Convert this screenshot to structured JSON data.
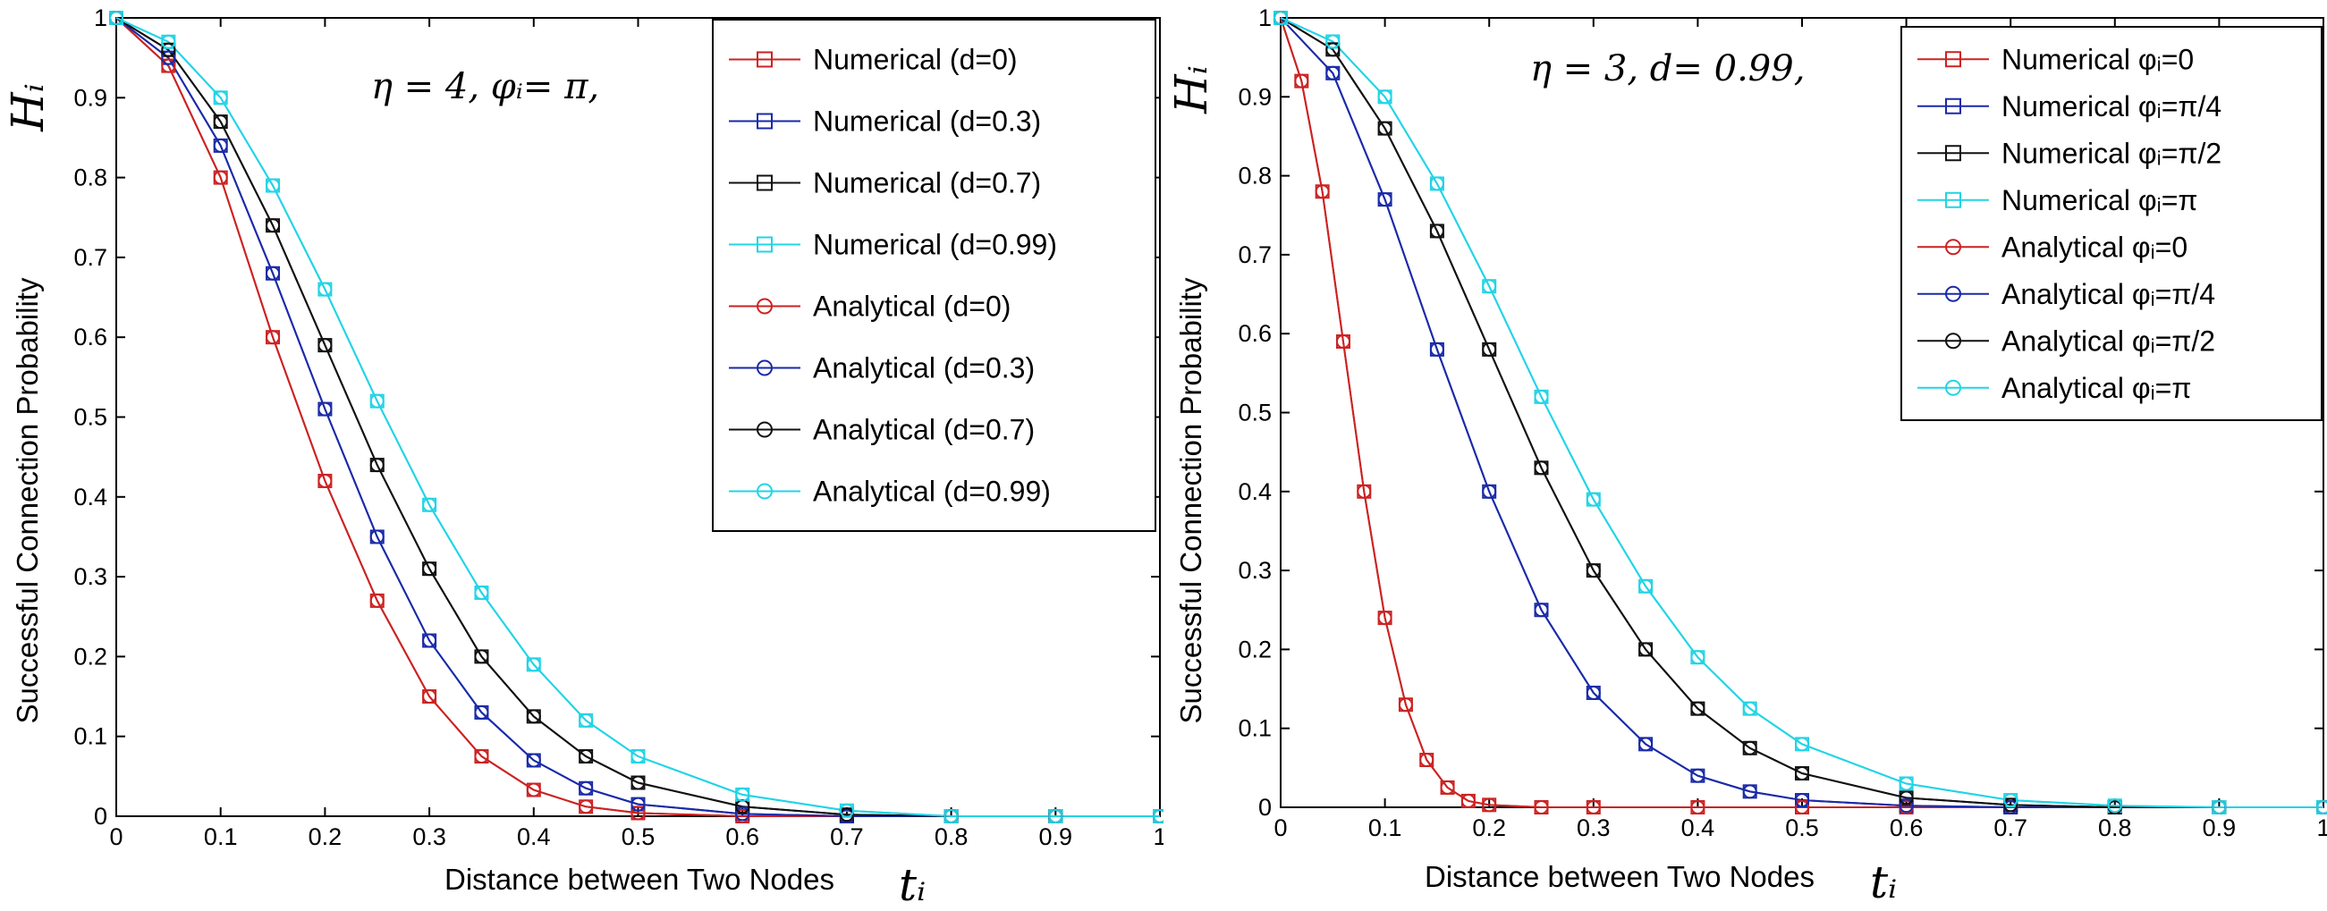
{
  "chart_data": [
    {
      "type": "line",
      "annotation": "η = 4, φᵢ= π,",
      "xlabel": "Distance between Two Nodes",
      "xlabel_symbol": "tᵢ",
      "ylabel": "Successful Connection Probability",
      "ylabel_symbol": "Hᵢ",
      "xlim": [
        0,
        1
      ],
      "ylim": [
        0,
        1
      ],
      "xticks": [
        "0",
        "0.1",
        "0.2",
        "0.3",
        "0.4",
        "0.5",
        "0.6",
        "0.7",
        "0.8",
        "0.9",
        "1"
      ],
      "yticks": [
        "0",
        "0.1",
        "0.2",
        "0.3",
        "0.4",
        "0.5",
        "0.6",
        "0.7",
        "0.8",
        "0.9",
        "1"
      ],
      "legend_position": "top-right",
      "series": [
        {
          "name": "Numerical (d=0)",
          "color": "#cc2222",
          "marker": "square",
          "x": [
            0,
            0.05,
            0.1,
            0.15,
            0.2,
            0.25,
            0.3,
            0.35,
            0.4,
            0.45,
            0.5,
            0.6,
            0.7,
            0.8,
            0.9,
            1.0
          ],
          "y": [
            1.0,
            0.94,
            0.8,
            0.6,
            0.42,
            0.27,
            0.15,
            0.075,
            0.033,
            0.012,
            0.004,
            0.0,
            0.0,
            0.0,
            0.0,
            0.0
          ]
        },
        {
          "name": "Numerical (d=0.3)",
          "color": "#1a2aa8",
          "marker": "square",
          "x": [
            0,
            0.05,
            0.1,
            0.15,
            0.2,
            0.25,
            0.3,
            0.35,
            0.4,
            0.45,
            0.5,
            0.6,
            0.7,
            0.8,
            0.9,
            1.0
          ],
          "y": [
            1.0,
            0.95,
            0.84,
            0.68,
            0.51,
            0.35,
            0.22,
            0.13,
            0.07,
            0.035,
            0.015,
            0.003,
            0.0,
            0.0,
            0.0,
            0.0
          ]
        },
        {
          "name": "Numerical (d=0.7)",
          "color": "#111111",
          "marker": "square",
          "x": [
            0,
            0.05,
            0.1,
            0.15,
            0.2,
            0.25,
            0.3,
            0.35,
            0.4,
            0.45,
            0.5,
            0.6,
            0.7,
            0.8,
            0.9,
            1.0
          ],
          "y": [
            1.0,
            0.96,
            0.87,
            0.74,
            0.59,
            0.44,
            0.31,
            0.2,
            0.125,
            0.075,
            0.042,
            0.012,
            0.002,
            0.0,
            0.0,
            0.0
          ]
        },
        {
          "name": "Numerical (d=0.99)",
          "color": "#22d4e6",
          "marker": "square",
          "x": [
            0,
            0.05,
            0.1,
            0.15,
            0.2,
            0.25,
            0.3,
            0.35,
            0.4,
            0.45,
            0.5,
            0.6,
            0.7,
            0.8,
            0.9,
            1.0
          ],
          "y": [
            1.0,
            0.97,
            0.9,
            0.79,
            0.66,
            0.52,
            0.39,
            0.28,
            0.19,
            0.12,
            0.075,
            0.027,
            0.007,
            0.0,
            0.0,
            0.0
          ]
        },
        {
          "name": "Analytical (d=0)",
          "color": "#cc2222",
          "marker": "circle",
          "x": [
            0,
            0.05,
            0.1,
            0.15,
            0.2,
            0.25,
            0.3,
            0.35,
            0.4,
            0.45,
            0.5,
            0.6,
            0.7,
            0.8,
            0.9,
            1.0
          ],
          "y": [
            1.0,
            0.94,
            0.8,
            0.6,
            0.42,
            0.27,
            0.15,
            0.075,
            0.033,
            0.012,
            0.004,
            0.0,
            0.0,
            0.0,
            0.0,
            0.0
          ]
        },
        {
          "name": "Analytical (d=0.3)",
          "color": "#1a2aa8",
          "marker": "circle",
          "x": [
            0,
            0.05,
            0.1,
            0.15,
            0.2,
            0.25,
            0.3,
            0.35,
            0.4,
            0.45,
            0.5,
            0.6,
            0.7,
            0.8,
            0.9,
            1.0
          ],
          "y": [
            1.0,
            0.95,
            0.84,
            0.68,
            0.51,
            0.35,
            0.22,
            0.13,
            0.07,
            0.035,
            0.015,
            0.003,
            0.0,
            0.0,
            0.0,
            0.0
          ]
        },
        {
          "name": "Analytical (d=0.7)",
          "color": "#111111",
          "marker": "circle",
          "x": [
            0,
            0.05,
            0.1,
            0.15,
            0.2,
            0.25,
            0.3,
            0.35,
            0.4,
            0.45,
            0.5,
            0.6,
            0.7,
            0.8,
            0.9,
            1.0
          ],
          "y": [
            1.0,
            0.96,
            0.87,
            0.74,
            0.59,
            0.44,
            0.31,
            0.2,
            0.125,
            0.075,
            0.042,
            0.012,
            0.002,
            0.0,
            0.0,
            0.0
          ]
        },
        {
          "name": "Analytical (d=0.99)",
          "color": "#22d4e6",
          "marker": "circle",
          "x": [
            0,
            0.05,
            0.1,
            0.15,
            0.2,
            0.25,
            0.3,
            0.35,
            0.4,
            0.45,
            0.5,
            0.6,
            0.7,
            0.8,
            0.9,
            1.0
          ],
          "y": [
            1.0,
            0.97,
            0.9,
            0.79,
            0.66,
            0.52,
            0.39,
            0.28,
            0.19,
            0.12,
            0.075,
            0.027,
            0.007,
            0.0,
            0.0,
            0.0
          ]
        }
      ]
    },
    {
      "type": "line",
      "annotation": "η = 3,  d= 0.99,",
      "xlabel": "Distance between Two Nodes",
      "xlabel_symbol": "tᵢ",
      "ylabel": "Successful Connection Probability",
      "ylabel_symbol": "Hᵢ",
      "xlim": [
        0,
        1
      ],
      "ylim": [
        0,
        1
      ],
      "xticks": [
        "0",
        "0.1",
        "0.2",
        "0.3",
        "0.4",
        "0.5",
        "0.6",
        "0.7",
        "0.8",
        "0.9",
        "1"
      ],
      "yticks": [
        "0",
        "0.1",
        "0.2",
        "0.3",
        "0.4",
        "0.5",
        "0.6",
        "0.7",
        "0.8",
        "0.9",
        "1"
      ],
      "legend_position": "top-right",
      "series": [
        {
          "name": "Numerical φᵢ=0",
          "color": "#cc2222",
          "marker": "square",
          "x": [
            0,
            0.02,
            0.04,
            0.06,
            0.08,
            0.1,
            0.12,
            0.14,
            0.16,
            0.18,
            0.2,
            0.25,
            0.3,
            0.4,
            0.5,
            0.6,
            0.7,
            0.8,
            0.9,
            1.0
          ],
          "y": [
            1.0,
            0.92,
            0.78,
            0.59,
            0.4,
            0.24,
            0.13,
            0.06,
            0.025,
            0.008,
            0.003,
            0.0,
            0.0,
            0.0,
            0.0,
            0.0,
            0.0,
            0.0,
            0.0,
            0.0
          ]
        },
        {
          "name": "Numerical φᵢ=π/4",
          "color": "#1a2aa8",
          "marker": "square",
          "x": [
            0,
            0.05,
            0.1,
            0.15,
            0.2,
            0.25,
            0.3,
            0.35,
            0.4,
            0.45,
            0.5,
            0.6,
            0.7,
            0.8,
            0.9,
            1.0
          ],
          "y": [
            1.0,
            0.93,
            0.77,
            0.58,
            0.4,
            0.25,
            0.145,
            0.08,
            0.04,
            0.02,
            0.009,
            0.002,
            0.0,
            0.0,
            0.0,
            0.0
          ]
        },
        {
          "name": "Numerical φᵢ=π/2",
          "color": "#111111",
          "marker": "square",
          "x": [
            0,
            0.05,
            0.1,
            0.15,
            0.2,
            0.25,
            0.3,
            0.35,
            0.4,
            0.45,
            0.5,
            0.6,
            0.7,
            0.8,
            0.9,
            1.0
          ],
          "y": [
            1.0,
            0.96,
            0.86,
            0.73,
            0.58,
            0.43,
            0.3,
            0.2,
            0.125,
            0.075,
            0.043,
            0.012,
            0.003,
            0.0,
            0.0,
            0.0
          ]
        },
        {
          "name": "Numerical φᵢ=π",
          "color": "#22d4e6",
          "marker": "square",
          "x": [
            0,
            0.05,
            0.1,
            0.15,
            0.2,
            0.25,
            0.3,
            0.35,
            0.4,
            0.45,
            0.5,
            0.6,
            0.7,
            0.8,
            0.9,
            1.0
          ],
          "y": [
            1.0,
            0.97,
            0.9,
            0.79,
            0.66,
            0.52,
            0.39,
            0.28,
            0.19,
            0.125,
            0.08,
            0.03,
            0.009,
            0.002,
            0.0,
            0.0
          ]
        },
        {
          "name": "Analytical  φᵢ=0",
          "color": "#cc2222",
          "marker": "circle",
          "x": [
            0,
            0.02,
            0.04,
            0.06,
            0.08,
            0.1,
            0.12,
            0.14,
            0.16,
            0.18,
            0.2,
            0.25,
            0.3,
            0.4,
            0.5,
            0.6,
            0.7,
            0.8,
            0.9,
            1.0
          ],
          "y": [
            1.0,
            0.92,
            0.78,
            0.59,
            0.4,
            0.24,
            0.13,
            0.06,
            0.025,
            0.008,
            0.003,
            0.0,
            0.0,
            0.0,
            0.0,
            0.0,
            0.0,
            0.0,
            0.0,
            0.0
          ]
        },
        {
          "name": "Analytical  φᵢ=π/4",
          "color": "#1a2aa8",
          "marker": "circle",
          "x": [
            0,
            0.05,
            0.1,
            0.15,
            0.2,
            0.25,
            0.3,
            0.35,
            0.4,
            0.45,
            0.5,
            0.6,
            0.7,
            0.8,
            0.9,
            1.0
          ],
          "y": [
            1.0,
            0.93,
            0.77,
            0.58,
            0.4,
            0.25,
            0.145,
            0.08,
            0.04,
            0.02,
            0.009,
            0.002,
            0.0,
            0.0,
            0.0,
            0.0
          ]
        },
        {
          "name": "Analytical  φᵢ=π/2",
          "color": "#111111",
          "marker": "circle",
          "x": [
            0,
            0.05,
            0.1,
            0.15,
            0.2,
            0.25,
            0.3,
            0.35,
            0.4,
            0.45,
            0.5,
            0.6,
            0.7,
            0.8,
            0.9,
            1.0
          ],
          "y": [
            1.0,
            0.96,
            0.86,
            0.73,
            0.58,
            0.43,
            0.3,
            0.2,
            0.125,
            0.075,
            0.043,
            0.012,
            0.003,
            0.0,
            0.0,
            0.0
          ]
        },
        {
          "name": "Analytical  φᵢ=π",
          "color": "#22d4e6",
          "marker": "circle",
          "x": [
            0,
            0.05,
            0.1,
            0.15,
            0.2,
            0.25,
            0.3,
            0.35,
            0.4,
            0.45,
            0.5,
            0.6,
            0.7,
            0.8,
            0.9,
            1.0
          ],
          "y": [
            1.0,
            0.97,
            0.9,
            0.79,
            0.66,
            0.52,
            0.39,
            0.28,
            0.19,
            0.125,
            0.08,
            0.03,
            0.009,
            0.002,
            0.0,
            0.0
          ]
        }
      ]
    }
  ]
}
